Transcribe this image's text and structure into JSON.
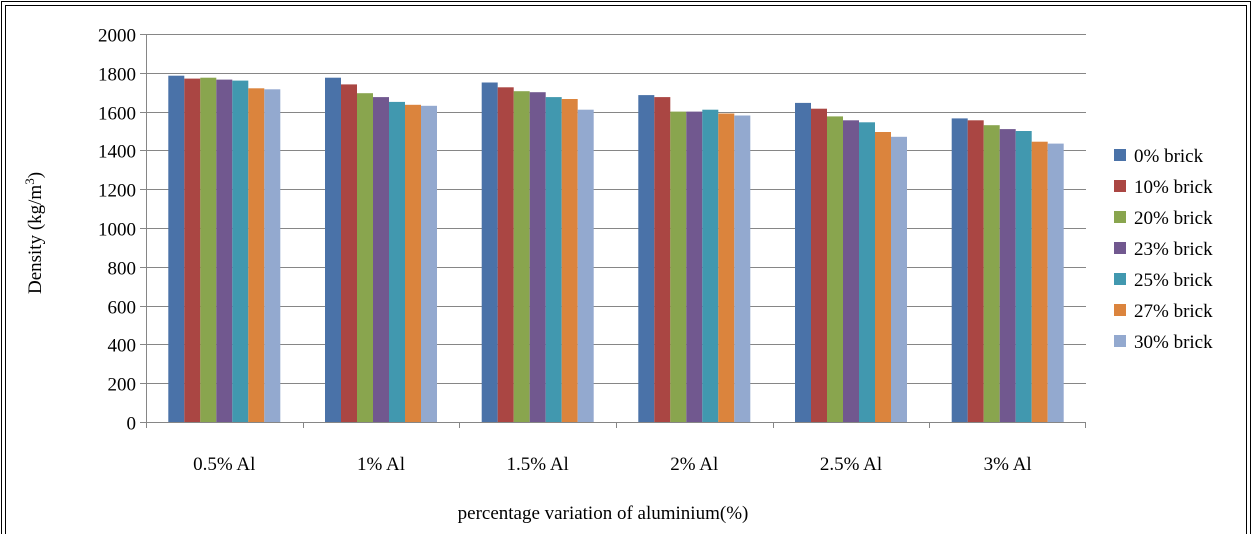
{
  "chart_data": {
    "type": "bar",
    "title": "",
    "xlabel": "percentage variation of aluminium(%)",
    "ylabel_main": "Density (kg/m",
    "ylabel_sup": "3",
    "ylabel_tail": ")",
    "ylim": [
      0,
      2000
    ],
    "yticks": [
      "0",
      "200",
      "400",
      "600",
      "800",
      "1000",
      "1200",
      "1400",
      "1600",
      "1800",
      "2000"
    ],
    "grid": true,
    "legend_position": "right",
    "categories": [
      "0.5% Al",
      "1% Al",
      "1.5% Al",
      "2% Al",
      "2.5% Al",
      "3% Al"
    ],
    "series": [
      {
        "name": "0% brick",
        "color": "#4A72A8",
        "values": [
          1785,
          1775,
          1750,
          1685,
          1645,
          1565
        ]
      },
      {
        "name": "10% brick",
        "color": "#AA4643",
        "values": [
          1770,
          1740,
          1725,
          1675,
          1615,
          1555
        ]
      },
      {
        "name": "20% brick",
        "color": "#89A54E",
        "values": [
          1775,
          1695,
          1705,
          1600,
          1575,
          1530
        ]
      },
      {
        "name": "23% brick",
        "color": "#71588F",
        "values": [
          1765,
          1675,
          1700,
          1600,
          1555,
          1510
        ]
      },
      {
        "name": "25% brick",
        "color": "#4198AF",
        "values": [
          1760,
          1650,
          1675,
          1610,
          1545,
          1500
        ]
      },
      {
        "name": "27% brick",
        "color": "#DB843D",
        "values": [
          1720,
          1635,
          1665,
          1590,
          1495,
          1445
        ]
      },
      {
        "name": "30% brick",
        "color": "#93A9CF",
        "values": [
          1715,
          1630,
          1610,
          1580,
          1470,
          1435
        ]
      }
    ]
  }
}
